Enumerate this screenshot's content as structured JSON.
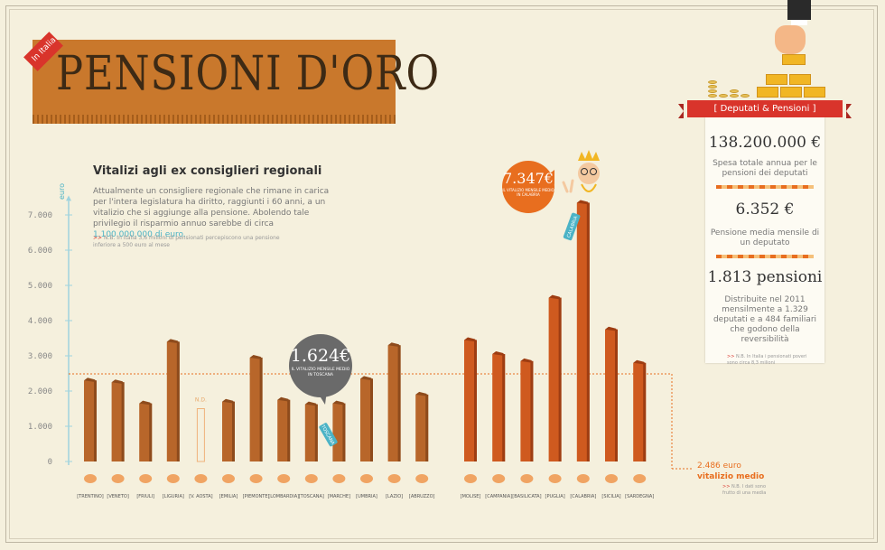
{
  "header": {
    "corner_tag": "In Italia",
    "title": "PENSIONI D'ORO"
  },
  "intro": {
    "subtitle": "Vitalizi agli ex consiglieri regionali",
    "text": "Attualmente un consigliere regionale che rimane in carica per l'intera legislatura ha diritto, raggiunti i 60 anni, a un vitalizio che si aggiunge alla pensione. Abolendo tale privilegio il risparmio annuo sarebbe di circa ",
    "highlight": "1.100.000.000 di euro.",
    "note": "N.B. In Italia 3,6 milioni di pensionati percepiscono una pensione inferiore a 500 euro al mese"
  },
  "callouts": {
    "toscana_value": "1.624€",
    "toscana_text": "IL VITALIZIO MENSILE MEDIO IN TOSCANA",
    "toscana_tag": "TOSCANA",
    "calabria_value": "7.347€",
    "calabria_text": "IL VITALIZIO MENSILE MEDIO IN CALABRIA",
    "calabria_tag": "CALABRIA"
  },
  "average": {
    "value_text": "2.486 euro",
    "label": "vitalizio medio",
    "note": "N.B. I dati sono frutto di una media"
  },
  "sidebar": {
    "ribbon": "[ Deputati & Pensioni ]",
    "stat1_value": "138.200.000 €",
    "stat1_text": "Spesa totale annua per le pensioni dei deputati",
    "stat2_value": "6.352 €",
    "stat2_text": "Pensione media mensile di un deputato",
    "stat3_value": "1.813 pensioni",
    "stat3_text": "Distribuite nel 2011 mensilmente a 1.329 deputati e a 484 familiari che godono della reversibilità",
    "note": "N.B. In Italia i pensionati poveri sono circa 8,3 milioni"
  },
  "chart_data": {
    "type": "bar",
    "title": "Vitalizi agli ex consiglieri regionali",
    "ylabel": "euro",
    "ylim": [
      0,
      7000
    ],
    "yticks": [
      "0",
      "1.000",
      "2.000",
      "3.000",
      "4.000",
      "5.000",
      "6.000",
      "7.000"
    ],
    "average": 2486,
    "na_label": "N.D.",
    "series": [
      {
        "categories": [
          "[TRENTINO]",
          "[VENETO]",
          "[FRIULI]",
          "[LIGURIA]",
          "[V. AOSTA]",
          "[EMILIA]",
          "[PIEMONTE]",
          "[LOMBARDIA]",
          "[TOSCANA]",
          "[MARCHE]",
          "[UMBRIA]",
          "[LAZIO]",
          "[ABRUZZO]"
        ],
        "values": [
          2300,
          2250,
          1650,
          3400,
          null,
          1700,
          2950,
          1750,
          1624,
          1650,
          2350,
          3300,
          1900
        ],
        "color": "#b8662a"
      },
      {
        "categories": [
          "[MOLISE]",
          "[CAMPANIA]",
          "[BASILICATA]",
          "[PUGLIA]",
          "[CALABRIA]",
          "[SICILIA]",
          "[SARDEGNA]"
        ],
        "values": [
          3450,
          3050,
          2850,
          4650,
          7347,
          3750,
          2800
        ],
        "color": "#cf5a1f"
      }
    ]
  }
}
